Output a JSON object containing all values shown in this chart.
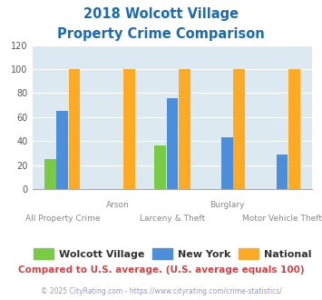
{
  "title_line1": "2018 Wolcott Village",
  "title_line2": "Property Crime Comparison",
  "title_color": "#1a6bb0",
  "series": {
    "Wolcott Village": [
      25,
      0,
      36,
      0,
      0
    ],
    "New York": [
      65,
      0,
      76,
      43,
      29
    ],
    "National": [
      100,
      100,
      100,
      100,
      100
    ]
  },
  "colors": {
    "Wolcott Village": "#77cc44",
    "New York": "#4d8edb",
    "National": "#ffaa22"
  },
  "ylim": [
    0,
    120
  ],
  "yticks": [
    0,
    20,
    40,
    60,
    80,
    100,
    120
  ],
  "plot_bg_color": "#dce9f0",
  "fig_bg_color": "#ffffff",
  "footnote": "Compared to U.S. average. (U.S. average equals 100)",
  "copyright": "© 2025 CityRating.com - https://www.cityrating.com/crime-statistics/",
  "footnote_color": "#cc4444",
  "copyright_color": "#9999bb",
  "top_xlabels": [
    [
      "Arson",
      1
    ],
    [
      "Burglary",
      3
    ]
  ],
  "bottom_xlabels": [
    [
      "All Property Crime",
      0
    ],
    [
      "Larceny & Theft",
      2
    ],
    [
      "Motor Vehicle Theft",
      4
    ]
  ],
  "bar_width": 0.22,
  "n_groups": 5
}
